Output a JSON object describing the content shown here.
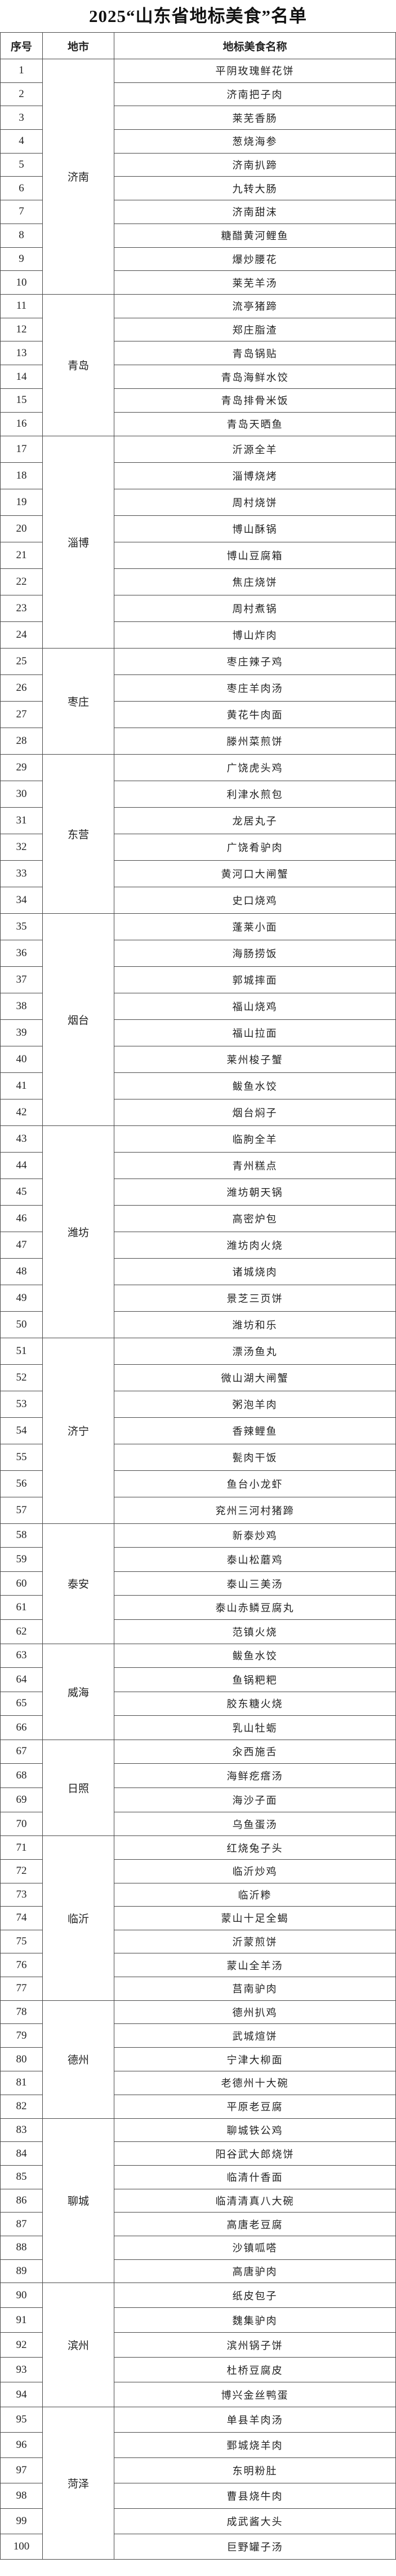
{
  "title": "2025“山东省地标美食”名单",
  "headers": {
    "no": "序号",
    "city": "地市",
    "name": "地标美食名称"
  },
  "groups": [
    {
      "city": "济南",
      "items": [
        "平阴玫瑰鲜花饼",
        "济南把子肉",
        "莱芜香肠",
        "葱烧海参",
        "济南扒蹄",
        "九转大肠",
        "济南甜沫",
        "糖醋黄河鲤鱼",
        "爆炒腰花",
        "莱芜羊汤"
      ]
    },
    {
      "city": "青岛",
      "items": [
        "流亭猪蹄",
        "郑庄脂渣",
        "青岛锅贴",
        "青岛海鲜水饺",
        "青岛排骨米饭",
        "青岛天晒鱼"
      ]
    },
    {
      "city": "淄博",
      "items": [
        "沂源全羊",
        "淄博烧烤",
        "周村烧饼",
        "博山酥锅",
        "博山豆腐箱",
        "焦庄烧饼",
        "周村煮锅",
        "博山炸肉"
      ]
    },
    {
      "city": "枣庄",
      "items": [
        "枣庄辣子鸡",
        "枣庄羊肉汤",
        "黄花牛肉面",
        "滕州菜煎饼"
      ]
    },
    {
      "city": "东营",
      "items": [
        "广饶虎头鸡",
        "利津水煎包",
        "龙居丸子",
        "广饶肴驴肉",
        "黄河口大闸蟹",
        "史口烧鸡"
      ]
    },
    {
      "city": "烟台",
      "items": [
        "蓬莱小面",
        "海肠捞饭",
        "郭城摔面",
        "福山烧鸡",
        "福山拉面",
        "莱州梭子蟹",
        "鲅鱼水饺",
        "烟台焖子"
      ]
    },
    {
      "city": "潍坊",
      "items": [
        "临朐全羊",
        "青州糕点",
        "潍坊朝天锅",
        "高密炉包",
        "潍坊肉火烧",
        "诸城烧肉",
        "景芝三页饼",
        "潍坊和乐"
      ]
    },
    {
      "city": "济宁",
      "items": [
        "漂汤鱼丸",
        "微山湖大闸蟹",
        "粥泡羊肉",
        "香辣鲤鱼",
        "甏肉干饭",
        "鱼台小龙虾",
        "兖州三河村猪蹄"
      ]
    },
    {
      "city": "泰安",
      "items": [
        "新泰炒鸡",
        "泰山松蘑鸡",
        "泰山三美汤",
        "泰山赤鳞豆腐丸",
        "范镇火烧"
      ]
    },
    {
      "city": "威海",
      "items": [
        "鲅鱼水饺",
        "鱼锅粑粑",
        "胶东糖火烧",
        "乳山牡蛎"
      ]
    },
    {
      "city": "日照",
      "items": [
        "汆西施舌",
        "海鲜疙瘩汤",
        "海沙子面",
        "乌鱼蛋汤"
      ]
    },
    {
      "city": "临沂",
      "items": [
        "红烧兔子头",
        "临沂炒鸡",
        "临沂糁",
        "蒙山十足全蝎",
        "沂蒙煎饼",
        "蒙山全羊汤",
        "莒南驴肉"
      ]
    },
    {
      "city": "德州",
      "items": [
        "德州扒鸡",
        "武城煊饼",
        "宁津大柳面",
        "老德州十大碗",
        "平原老豆腐"
      ]
    },
    {
      "city": "聊城",
      "items": [
        "聊城铁公鸡",
        "阳谷武大郎烧饼",
        "临清什香面",
        "临清清真八大碗",
        "高唐老豆腐",
        "沙镇呱嗒",
        "高唐驴肉"
      ]
    },
    {
      "city": "滨州",
      "items": [
        "纸皮包子",
        "魏集驴肉",
        "滨州锅子饼",
        "杜桥豆腐皮",
        "博兴金丝鸭蛋"
      ]
    },
    {
      "city": "菏泽",
      "items": [
        "单县羊肉汤",
        "鄄城烧羊肉",
        "东明粉肚",
        "曹县烧牛肉",
        "成武酱大头",
        "巨野罐子汤"
      ]
    }
  ]
}
